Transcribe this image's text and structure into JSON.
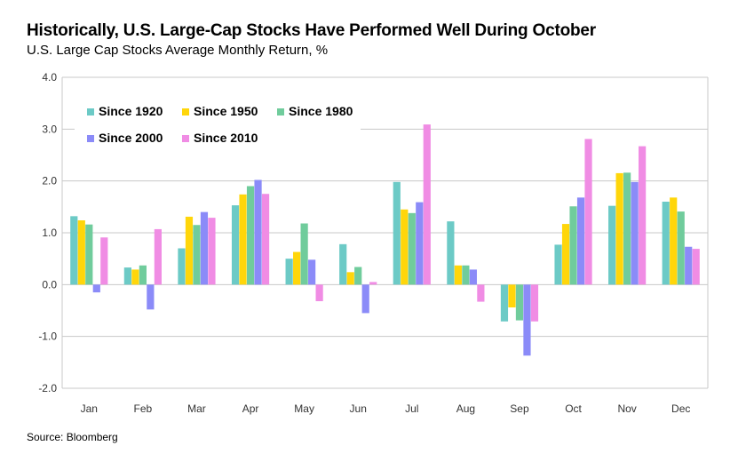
{
  "title": "Historically, U.S. Large-Cap Stocks Have Performed Well During October",
  "subtitle": "U.S. Large Cap Stocks Average Monthly Return, %",
  "source": "Source: Bloomberg",
  "chart_data": {
    "type": "bar",
    "title": "Historically, U.S. Large-Cap Stocks Have Performed Well During October",
    "subtitle": "U.S. Large Cap Stocks Average Monthly Return, %",
    "xlabel": "",
    "ylabel": "",
    "ylim": [
      -2.0,
      4.0
    ],
    "yticks": [
      "4.0",
      "3.0",
      "2.0",
      "1.0",
      "0.0",
      "-1.0",
      "-2.0"
    ],
    "grid": true,
    "legend": "top-left",
    "categories": [
      "Jan",
      "Feb",
      "Mar",
      "Apr",
      "May",
      "Jun",
      "Jul",
      "Aug",
      "Sep",
      "Oct",
      "Nov",
      "Dec"
    ],
    "series": [
      {
        "name": "Since 1920",
        "color": "#6ccac6",
        "values": [
          1.32,
          0.33,
          0.7,
          1.53,
          0.5,
          0.78,
          1.98,
          1.22,
          -0.71,
          0.77,
          1.52,
          1.6
        ]
      },
      {
        "name": "Since 1950",
        "color": "#ffd60a",
        "values": [
          1.24,
          0.29,
          1.31,
          1.74,
          0.63,
          0.24,
          1.45,
          0.37,
          -0.44,
          1.17,
          2.15,
          1.68
        ]
      },
      {
        "name": "Since 1980",
        "color": "#70cc9c",
        "values": [
          1.16,
          0.37,
          1.15,
          1.9,
          1.18,
          0.34,
          1.38,
          0.37,
          -0.69,
          1.51,
          2.16,
          1.41
        ]
      },
      {
        "name": "Since 2000",
        "color": "#8b8bf8",
        "values": [
          -0.15,
          -0.48,
          1.4,
          2.02,
          0.48,
          -0.55,
          1.59,
          0.29,
          -1.37,
          1.68,
          1.98,
          0.73
        ]
      },
      {
        "name": "Since 2010",
        "color": "#f08ce4",
        "values": [
          0.91,
          1.07,
          1.29,
          1.75,
          -0.32,
          0.05,
          3.09,
          -0.33,
          -0.71,
          2.81,
          2.67,
          0.69
        ]
      }
    ]
  }
}
